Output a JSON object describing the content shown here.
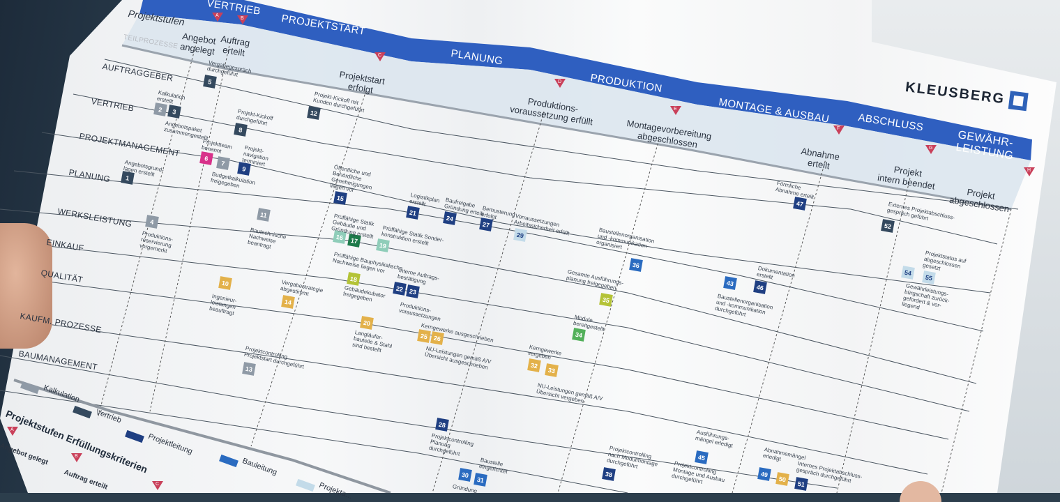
{
  "brand": {
    "logo_text": "KLEUSBERG",
    "accent": "#2f62b8"
  },
  "header": {
    "stages_label": "Projektstufen",
    "subprocesses_label": "TEILPROZESSE"
  },
  "phases": [
    "VERTRIEB",
    "PROJEKTSTART",
    "PLANUNG",
    "PRODUKTION",
    "MONTAGE & AUSBAU",
    "ABSCHLUSS",
    "GEWÄHR-\nLEISTUNG"
  ],
  "milestones": [
    {
      "letter": "A",
      "text": "Angebot\nangelegt"
    },
    {
      "letter": "B",
      "text": "Auftrag\nerteilt"
    },
    {
      "letter": "C",
      "text": "Projektstart\nerfolgt"
    },
    {
      "letter": "D",
      "text": "Produktions-\nvoraussetzung erfüllt"
    },
    {
      "letter": "E",
      "text": "Montagevorbereitung\nabgeschlossen"
    },
    {
      "letter": "F",
      "text": "Abnahme\nerteilt"
    },
    {
      "letter": "G",
      "text": "Projekt\nintern beendet"
    },
    {
      "letter": "H",
      "text": "Projekt\nabgeschlossen"
    }
  ],
  "lanes": [
    "AUFTRAGGEBER",
    "VERTRIEB",
    "PROJEKTMANAGEMENT",
    "PLANUNG",
    "WERKSLEISTUNG",
    "EINKAUF",
    "QUALITÄT",
    "KAUFM. PROZESSE",
    "BAUMANAGEMENT"
  ],
  "colors": {
    "kalkulation": "#8f9aa6",
    "vertrieb": "#34495e",
    "projektleitung": "#1f3f82",
    "bauleitung": "#2a6bc0",
    "projektassistenz": "#c3dbe9",
    "pink": "#d8318a",
    "teal": "#8fcdb9",
    "darkgreen": "#1d7a4a",
    "olive": "#b4c337",
    "amber": "#e3b14a",
    "green": "#52b05a",
    "milestone": "#c9405a"
  },
  "nodes": [
    {
      "n": "1",
      "c": "vertrieb"
    },
    {
      "n": "2",
      "c": "kalkulation"
    },
    {
      "n": "3",
      "c": "vertrieb"
    },
    {
      "n": "4",
      "c": "kalkulation"
    },
    {
      "n": "5",
      "c": "vertrieb"
    },
    {
      "n": "6",
      "c": "pink"
    },
    {
      "n": "7",
      "c": "kalkulation"
    },
    {
      "n": "8",
      "c": "vertrieb"
    },
    {
      "n": "9",
      "c": "projektleitung"
    },
    {
      "n": "10",
      "c": "amber"
    },
    {
      "n": "11",
      "c": "kalkulation"
    },
    {
      "n": "12",
      "c": "vertrieb"
    },
    {
      "n": "13",
      "c": "kalkulation"
    },
    {
      "n": "14",
      "c": "amber"
    },
    {
      "n": "15",
      "c": "projektleitung"
    },
    {
      "n": "16",
      "c": "teal"
    },
    {
      "n": "17",
      "c": "darkgreen"
    },
    {
      "n": "18",
      "c": "olive"
    },
    {
      "n": "19",
      "c": "teal"
    },
    {
      "n": "20",
      "c": "amber"
    },
    {
      "n": "21",
      "c": "projektleitung"
    },
    {
      "n": "22",
      "c": "projektleitung"
    },
    {
      "n": "23",
      "c": "projektleitung"
    },
    {
      "n": "24",
      "c": "projektleitung"
    },
    {
      "n": "25",
      "c": "amber"
    },
    {
      "n": "26",
      "c": "amber"
    },
    {
      "n": "27",
      "c": "projektleitung"
    },
    {
      "n": "28",
      "c": "projektleitung"
    },
    {
      "n": "29",
      "c": "projektassistenz"
    },
    {
      "n": "30",
      "c": "bauleitung"
    },
    {
      "n": "31",
      "c": "bauleitung"
    },
    {
      "n": "32",
      "c": "amber"
    },
    {
      "n": "33",
      "c": "amber"
    },
    {
      "n": "34",
      "c": "green"
    },
    {
      "n": "35",
      "c": "olive"
    },
    {
      "n": "36",
      "c": "bauleitung"
    },
    {
      "n": "38",
      "c": "projektleitung"
    },
    {
      "n": "43",
      "c": "bauleitung"
    },
    {
      "n": "45",
      "c": "bauleitung"
    },
    {
      "n": "46",
      "c": "projektleitung"
    },
    {
      "n": "47",
      "c": "projektleitung"
    },
    {
      "n": "49",
      "c": "bauleitung"
    },
    {
      "n": "50",
      "c": "amber"
    },
    {
      "n": "51",
      "c": "projektleitung"
    },
    {
      "n": "52",
      "c": "vertrieb"
    },
    {
      "n": "54",
      "c": "projektassistenz"
    },
    {
      "n": "55",
      "c": "projektassistenz"
    }
  ],
  "labels": [
    "Vergabegespräch\ndurchgeführt",
    "Kalkulation\nerstellt",
    "Angebotspaket\nzusammengestellt",
    "Projekt-Kickoff\ndurchgeführt",
    "Projekt-Kickoff mit\nKunden durchgeführt",
    "Projektteam\nbenannt",
    "Projekt-\nnavigation\nterminiert",
    "Budgetkalkulation\nfreigegeben",
    "Angebotsgrund-\nlagen erstellt",
    "Produktions-\nreservierung\nvorgemerkt",
    "Bautechnische\nNachweise\nbeantragt",
    "Öffentliche und\nBehördliche\nGenehmigungen\nliegen vor",
    "Logistikplan\nerstellt",
    "Baufreigabe\nGründung erteilt",
    "Bemusterung\nerfolgt",
    "Vorraussetzungen\nArbeitssicherheit erfüllt",
    "Prüffähige Statik\nGebäude und\nGründung erstellt",
    "Prüffähige Statik Sonder-\nkonstruktion erstellt",
    "Prüffähige Bauphysikalische\nNachweise liegen vor",
    "Gebäudekubator\nfreigegeben",
    "Interne Auftrags-\nbestätigung",
    "Produktions-\nvoraussetzungen",
    "Ingenieur-\nleistungen\nbeauftragt",
    "Vergabestrategie\nabgestimmt",
    "Langläufer-\nbauteile & Stahl\nsind bestellt",
    "Kerngewerke ausgeschrieben",
    "NU-Leistungen gemäß A/V\nÜbersicht ausgeschrieben",
    "Projektcontrolling\nProjektstart durchgeführt",
    "Baustellenorganisation\nund -kommunikation\norganisiert",
    "Gesamte Ausführungs-\nplanung freigegeben",
    "Module\nbereitgestellt",
    "Kerngewerke\nvergeben",
    "NU-Leistungen gemäß A/V\nÜbersicht vergeben",
    "Baustellenorganisation\nund -kommunikation\ndurchgeführt",
    "Dokumentation\nerstellt",
    "Förmliche\nAbnahme erteilt",
    "Externes Projektabschluss-\ngespräch geführt",
    "Projektstatus auf\nabgeschlossen\ngesetzt",
    "Gewährleistungs-\nbürgschaft zurück-\ngefordert & vor-\nliegend",
    "Projektcontrolling\nPlanung\ndurchgeführt",
    "Baustelle\neingerichtet",
    "Gründung",
    "Projektcontrolling\nnach Modulmontage\ndurchgeführt",
    "Ausführungs-\nmängel erledigt",
    "Projektcontrolling\nMontage und Ausbau\ndurchgeführt",
    "Abnahmemängel\nerledigt",
    "Internes Projektabschluss-\ngespräch durchgeführt"
  ],
  "legend": {
    "title": "Projektstufen Erfüllungskriterien",
    "items": [
      "Kalkulation",
      "Vertrieb",
      "Projektleitung",
      "Bauleitung",
      "Projekta..."
    ],
    "criteria": [
      {
        "letter": "A",
        "text": "Angebot gelegt"
      },
      {
        "letter": "B",
        "text": "Auftrag erteilt"
      },
      {
        "letter": "C",
        "text": ""
      }
    ]
  }
}
